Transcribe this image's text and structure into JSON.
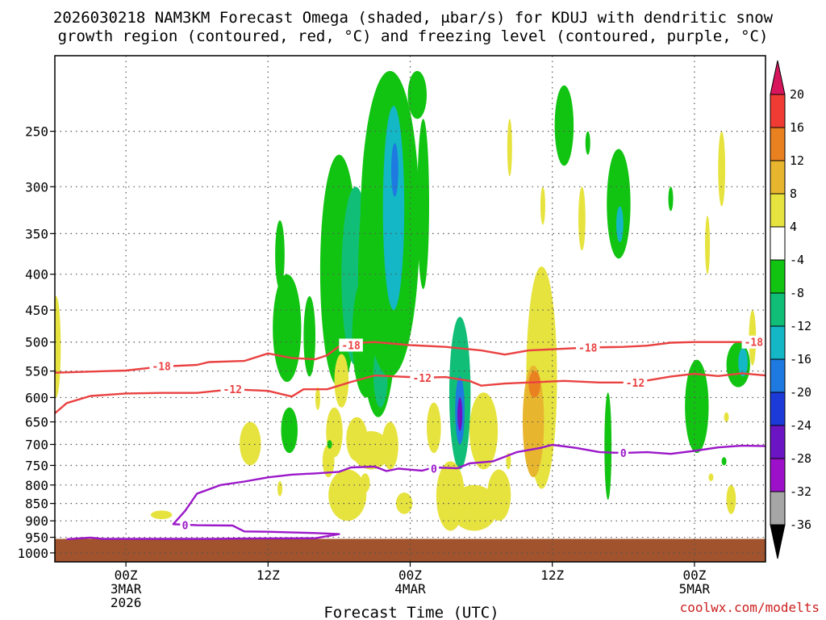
{
  "chart_data": {
    "type": "heatmap",
    "title": "2026030218 NAM3KM Forecast Omega (shaded, μbar/s) for KDUJ with dendritic snow",
    "subtitle": "growth region (contoured, red, °C) and freezing level (contoured, purple, °C)",
    "xlabel": "Forecast Time (UTC)",
    "ylabel": "",
    "credit": "coolwx.com/modelts",
    "x_axis": {
      "unit": "hours since 2026-03-02 18Z",
      "range": [
        0,
        60
      ],
      "ticks": [
        {
          "value": 6,
          "lines": [
            "00Z",
            "3MAR",
            "2026"
          ]
        },
        {
          "value": 18,
          "lines": [
            "12Z"
          ]
        },
        {
          "value": 30,
          "lines": [
            "00Z",
            "4MAR"
          ]
        },
        {
          "value": 42,
          "lines": [
            "12Z"
          ]
        },
        {
          "value": 54,
          "lines": [
            "00Z",
            "5MAR"
          ]
        }
      ]
    },
    "y_axis": {
      "unit": "hPa",
      "scale": "log",
      "range": [
        1030,
        195
      ],
      "ticks": [
        250,
        300,
        350,
        400,
        450,
        500,
        550,
        600,
        650,
        700,
        750,
        800,
        850,
        900,
        950,
        1000
      ]
    },
    "grid": true,
    "surface_pressure": 955,
    "colorbar": {
      "levels": [
        "20",
        "16",
        "12",
        "8",
        "4",
        "-4",
        "-8",
        "-12",
        "-16",
        "-20",
        "-24",
        "-28",
        "-32",
        "-36"
      ],
      "colors": [
        "#d8155c",
        "#ef3b34",
        "#e98121",
        "#e8b52e",
        "#e6e33f",
        "#ffffff",
        "#12c412",
        "#11be78",
        "#13b7c6",
        "#1e7ae0",
        "#1b3ad7",
        "#6b14c3",
        "#9d10c9",
        "#a6a6a6",
        "#000000"
      ]
    },
    "omega_cells": [
      {
        "x": 0.1,
        "p": 480,
        "rx": 0.4,
        "top": 430,
        "bottom": 600,
        "value": 4
      },
      {
        "x": 19.0,
        "p": 370,
        "rx": 0.4,
        "top": 335,
        "bottom": 420,
        "value": -6
      },
      {
        "x": 19.6,
        "p": 490,
        "rx": 1.2,
        "top": 400,
        "bottom": 570,
        "value": -6
      },
      {
        "x": 19.8,
        "p": 675,
        "rx": 0.7,
        "top": 620,
        "bottom": 720,
        "value": -6
      },
      {
        "x": 21.5,
        "p": 500,
        "rx": 0.5,
        "top": 430,
        "bottom": 560,
        "value": -6
      },
      {
        "x": 24.0,
        "p": 420,
        "rx": 1.6,
        "top": 270,
        "bottom": 580,
        "value": -6
      },
      {
        "x": 25.4,
        "p": 400,
        "rx": 1.2,
        "top": 300,
        "bottom": 540,
        "value": -10
      },
      {
        "x": 26.3,
        "p": 520,
        "rx": 1.2,
        "top": 400,
        "bottom": 600,
        "value": -6
      },
      {
        "x": 27.3,
        "p": 420,
        "rx": 1.7,
        "top": 260,
        "bottom": 640,
        "value": -6
      },
      {
        "x": 27.5,
        "p": 560,
        "rx": 0.6,
        "top": 500,
        "bottom": 620,
        "value": -10
      },
      {
        "x": 28.3,
        "p": 360,
        "rx": 2.5,
        "top": 205,
        "bottom": 560,
        "value": -6
      },
      {
        "x": 28.6,
        "p": 300,
        "rx": 0.9,
        "top": 230,
        "bottom": 450,
        "value": -12
      },
      {
        "x": 28.7,
        "p": 290,
        "rx": 0.3,
        "top": 260,
        "bottom": 310,
        "value": -16
      },
      {
        "x": 31.1,
        "p": 330,
        "rx": 0.5,
        "top": 240,
        "bottom": 420,
        "value": -6
      },
      {
        "x": 30.6,
        "p": 220,
        "rx": 0.8,
        "top": 205,
        "bottom": 240,
        "value": -6
      },
      {
        "x": 32.0,
        "p": 660,
        "rx": 0.6,
        "top": 610,
        "bottom": 720,
        "value": 4
      },
      {
        "x": 34.2,
        "p": 600,
        "rx": 0.9,
        "top": 460,
        "bottom": 760,
        "value": -8
      },
      {
        "x": 34.2,
        "p": 620,
        "rx": 0.4,
        "top": 560,
        "bottom": 700,
        "value": -16
      },
      {
        "x": 34.2,
        "p": 630,
        "rx": 0.2,
        "top": 600,
        "bottom": 670,
        "value": -26
      },
      {
        "x": 33.4,
        "p": 830,
        "rx": 1.2,
        "top": 740,
        "bottom": 930,
        "value": 4
      },
      {
        "x": 35.4,
        "p": 880,
        "rx": 2.0,
        "top": 800,
        "bottom": 930,
        "value": 4
      },
      {
        "x": 36.2,
        "p": 650,
        "rx": 1.2,
        "top": 590,
        "bottom": 760,
        "value": 4
      },
      {
        "x": 37.5,
        "p": 830,
        "rx": 1.0,
        "top": 760,
        "bottom": 900,
        "value": 4
      },
      {
        "x": 24.2,
        "p": 560,
        "rx": 0.6,
        "top": 520,
        "bottom": 620,
        "value": 4
      },
      {
        "x": 24.7,
        "p": 830,
        "rx": 1.6,
        "top": 760,
        "bottom": 900,
        "value": 4
      },
      {
        "x": 23.6,
        "p": 670,
        "rx": 0.7,
        "top": 620,
        "bottom": 730,
        "value": 4
      },
      {
        "x": 25.5,
        "p": 690,
        "rx": 0.9,
        "top": 640,
        "bottom": 740,
        "value": 4
      },
      {
        "x": 26.7,
        "p": 710,
        "rx": 1.6,
        "top": 670,
        "bottom": 760,
        "value": 4
      },
      {
        "x": 28.3,
        "p": 700,
        "rx": 0.7,
        "top": 650,
        "bottom": 760,
        "value": 4
      },
      {
        "x": 26.2,
        "p": 800,
        "rx": 0.4,
        "top": 770,
        "bottom": 820,
        "value": 4
      },
      {
        "x": 29.5,
        "p": 850,
        "rx": 0.7,
        "top": 820,
        "bottom": 880,
        "value": 4
      },
      {
        "x": 23.1,
        "p": 740,
        "rx": 0.5,
        "top": 700,
        "bottom": 780,
        "value": 4
      },
      {
        "x": 22.2,
        "p": 600,
        "rx": 0.2,
        "top": 580,
        "bottom": 625,
        "value": 4
      },
      {
        "x": 19.0,
        "p": 810,
        "rx": 0.2,
        "top": 790,
        "bottom": 830,
        "value": 4
      },
      {
        "x": 16.5,
        "p": 700,
        "rx": 0.9,
        "top": 650,
        "bottom": 750,
        "value": 4
      },
      {
        "x": 9.0,
        "p": 880,
        "rx": 0.9,
        "top": 870,
        "bottom": 895,
        "value": 4
      },
      {
        "x": 23.2,
        "p": 700,
        "rx": 0.15,
        "top": 690,
        "bottom": 710,
        "value": -6
      },
      {
        "x": 38.3,
        "p": 740,
        "rx": 0.2,
        "top": 720,
        "bottom": 760,
        "value": 4
      },
      {
        "x": 41.1,
        "p": 590,
        "rx": 1.3,
        "top": 390,
        "bottom": 810,
        "value": 4
      },
      {
        "x": 40.4,
        "p": 620,
        "rx": 0.9,
        "top": 540,
        "bottom": 780,
        "value": 8
      },
      {
        "x": 40.5,
        "p": 560,
        "rx": 0.5,
        "top": 550,
        "bottom": 600,
        "value": 12
      },
      {
        "x": 38.4,
        "p": 250,
        "rx": 0.2,
        "top": 240,
        "bottom": 290,
        "value": 4
      },
      {
        "x": 41.2,
        "p": 320,
        "rx": 0.2,
        "top": 300,
        "bottom": 340,
        "value": 4
      },
      {
        "x": 43.0,
        "p": 235,
        "rx": 0.8,
        "top": 215,
        "bottom": 280,
        "value": -6
      },
      {
        "x": 44.5,
        "p": 330,
        "rx": 0.3,
        "top": 300,
        "bottom": 370,
        "value": 4
      },
      {
        "x": 47.6,
        "p": 320,
        "rx": 1.0,
        "top": 265,
        "bottom": 380,
        "value": -6
      },
      {
        "x": 47.7,
        "p": 345,
        "rx": 0.3,
        "top": 320,
        "bottom": 360,
        "value": -12
      },
      {
        "x": 46.7,
        "p": 660,
        "rx": 0.3,
        "top": 590,
        "bottom": 840,
        "value": -6
      },
      {
        "x": 45.0,
        "p": 260,
        "rx": 0.2,
        "top": 250,
        "bottom": 270,
        "value": -6
      },
      {
        "x": 52.0,
        "p": 315,
        "rx": 0.2,
        "top": 300,
        "bottom": 325,
        "value": -6
      },
      {
        "x": 55.1,
        "p": 360,
        "rx": 0.2,
        "top": 330,
        "bottom": 400,
        "value": 4
      },
      {
        "x": 56.3,
        "p": 270,
        "rx": 0.3,
        "top": 250,
        "bottom": 320,
        "value": 4
      },
      {
        "x": 54.2,
        "p": 560,
        "rx": 1.0,
        "top": 530,
        "bottom": 720,
        "value": -6
      },
      {
        "x": 55.4,
        "p": 780,
        "rx": 0.2,
        "top": 770,
        "bottom": 790,
        "value": 4
      },
      {
        "x": 56.7,
        "p": 640,
        "rx": 0.2,
        "top": 630,
        "bottom": 650,
        "value": 4
      },
      {
        "x": 56.5,
        "p": 740,
        "rx": 0.15,
        "top": 730,
        "bottom": 750,
        "value": -6
      },
      {
        "x": 57.1,
        "p": 840,
        "rx": 0.4,
        "top": 800,
        "bottom": 880,
        "value": 4
      },
      {
        "x": 57.7,
        "p": 540,
        "rx": 1.0,
        "top": 500,
        "bottom": 580,
        "value": -6
      },
      {
        "x": 58.1,
        "p": 530,
        "rx": 0.4,
        "top": 510,
        "bottom": 560,
        "value": -12
      },
      {
        "x": 58.9,
        "p": 470,
        "rx": 0.3,
        "top": 450,
        "bottom": 540,
        "value": 4
      }
    ],
    "isotherms": [
      {
        "name": "-18",
        "color": "#ea4141",
        "points": [
          [
            0,
            553
          ],
          [
            3,
            551
          ],
          [
            6,
            549
          ],
          [
            9,
            542
          ],
          [
            12,
            539
          ],
          [
            13,
            534
          ],
          [
            16,
            532
          ],
          [
            18,
            519
          ],
          [
            20,
            527
          ],
          [
            22,
            529
          ],
          [
            23,
            522
          ],
          [
            24,
            507
          ],
          [
            25,
            502
          ],
          [
            27,
            500
          ],
          [
            30,
            505
          ],
          [
            33,
            508
          ],
          [
            36,
            514
          ],
          [
            38,
            521
          ],
          [
            40,
            514
          ],
          [
            43,
            511
          ],
          [
            45,
            509
          ],
          [
            48,
            508
          ],
          [
            50,
            506
          ],
          [
            52,
            501
          ],
          [
            54,
            500
          ],
          [
            57,
            500
          ],
          [
            59,
            500
          ],
          [
            60,
            497
          ]
        ],
        "labels": [
          [
            9,
            541
          ],
          [
            25,
            505
          ],
          [
            45,
            509
          ],
          [
            59,
            500
          ]
        ]
      },
      {
        "name": "-12",
        "color": "#ea4141",
        "points": [
          [
            0,
            632
          ],
          [
            1,
            611
          ],
          [
            3,
            597
          ],
          [
            6,
            592
          ],
          [
            9,
            591
          ],
          [
            12,
            591
          ],
          [
            15,
            584
          ],
          [
            18,
            587
          ],
          [
            20,
            598
          ],
          [
            21,
            584
          ],
          [
            23,
            584
          ],
          [
            25,
            570
          ],
          [
            27,
            558
          ],
          [
            29,
            560
          ],
          [
            31,
            562
          ],
          [
            33,
            561
          ],
          [
            35,
            568
          ],
          [
            36,
            577
          ],
          [
            38,
            573
          ],
          [
            40,
            571
          ],
          [
            43,
            568
          ],
          [
            46,
            571
          ],
          [
            49,
            571
          ],
          [
            52,
            560
          ],
          [
            54,
            555
          ],
          [
            56,
            559
          ],
          [
            58,
            554
          ],
          [
            60,
            558
          ]
        ],
        "labels": [
          [
            15,
            584
          ],
          [
            31,
            562
          ],
          [
            49,
            571
          ]
        ]
      },
      {
        "name": "0",
        "color": "#9b17c9",
        "points": [
          [
            1,
            956
          ],
          [
            3,
            951
          ],
          [
            4,
            955
          ],
          [
            6,
            955
          ],
          [
            9,
            955
          ],
          [
            13,
            955
          ],
          [
            16,
            954
          ],
          [
            22,
            953
          ],
          [
            24,
            940
          ],
          [
            22,
            937
          ],
          [
            18,
            933
          ],
          [
            16,
            932
          ],
          [
            15,
            914
          ],
          [
            12,
            913
          ],
          [
            10,
            910
          ],
          [
            11,
            871
          ],
          [
            12,
            823
          ],
          [
            14,
            800
          ],
          [
            16,
            791
          ],
          [
            18,
            780
          ],
          [
            20,
            773
          ],
          [
            22,
            770
          ],
          [
            24,
            766
          ],
          [
            25,
            755
          ],
          [
            27,
            753
          ],
          [
            28,
            764
          ],
          [
            29,
            758
          ],
          [
            31,
            763
          ],
          [
            32,
            755
          ],
          [
            34,
            757
          ],
          [
            35,
            745
          ],
          [
            37,
            740
          ],
          [
            39,
            718
          ],
          [
            41,
            708
          ],
          [
            42,
            701
          ],
          [
            44,
            708
          ],
          [
            46,
            718
          ],
          [
            48,
            720
          ],
          [
            50,
            718
          ],
          [
            52,
            722
          ],
          [
            54,
            715
          ],
          [
            56,
            707
          ],
          [
            58,
            703
          ],
          [
            60,
            704
          ]
        ],
        "labels": [
          [
            11,
            913
          ],
          [
            32,
            758
          ],
          [
            48,
            720
          ]
        ]
      }
    ]
  }
}
